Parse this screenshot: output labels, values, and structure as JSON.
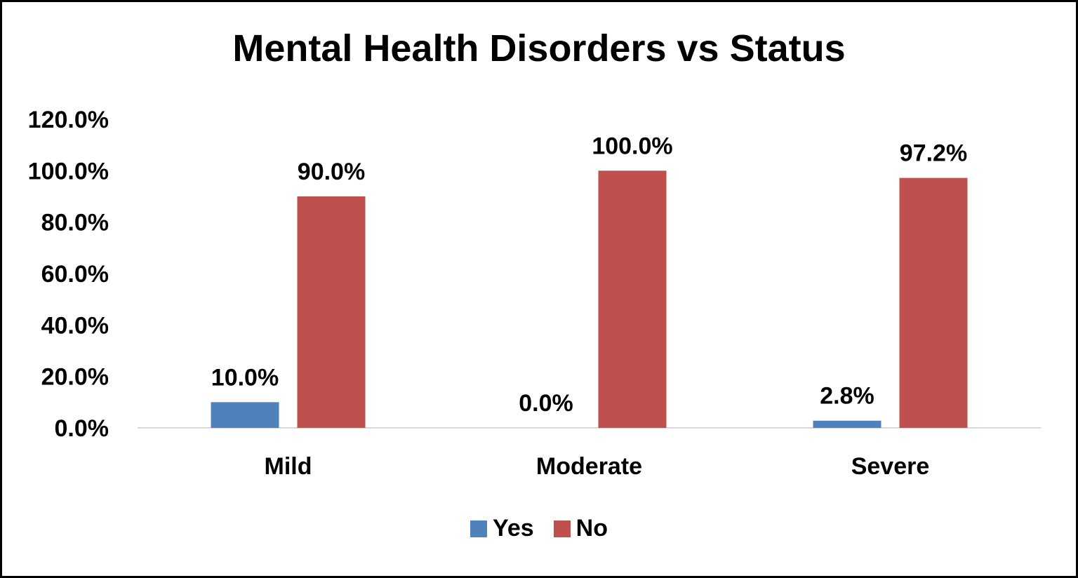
{
  "chart_data": {
    "type": "bar",
    "title": "Mental Health Disorders vs Status",
    "categories": [
      "Mild",
      "Moderate",
      "Severe"
    ],
    "series": [
      {
        "name": "Yes",
        "color": "#4F81BD",
        "values": [
          10.0,
          0.0,
          2.8
        ],
        "labels": [
          "10.0%",
          "0.0%",
          "2.8%"
        ]
      },
      {
        "name": "No",
        "color": "#C0504D",
        "values": [
          90.0,
          100.0,
          97.2
        ],
        "labels": [
          "90.0%",
          "100.0%",
          "97.2%"
        ]
      }
    ],
    "ylim": [
      0,
      120
    ],
    "yticks": [
      0,
      20,
      40,
      60,
      80,
      100,
      120
    ],
    "ytick_labels": [
      "0.0%",
      "20.0%",
      "40.0%",
      "60.0%",
      "80.0%",
      "100.0%",
      "120.0%"
    ],
    "grid": false,
    "legend_position": "bottom"
  }
}
